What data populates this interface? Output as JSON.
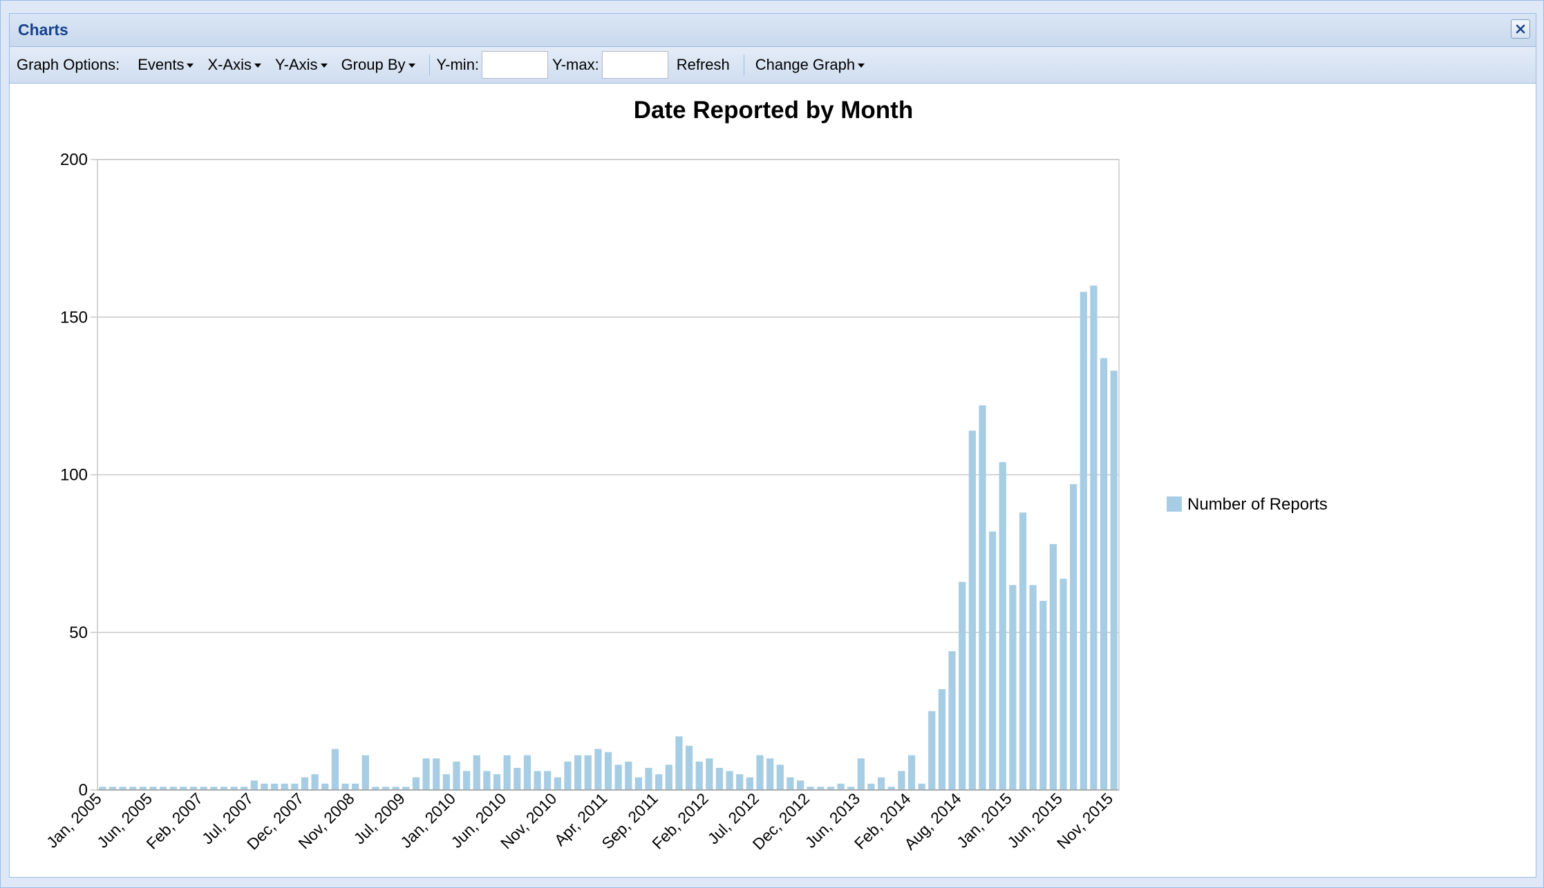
{
  "window": {
    "title": "Charts",
    "close_icon": "close-icon"
  },
  "toolbar": {
    "graph_options_label": "Graph Options:",
    "events_label": "Events",
    "xaxis_label": "X-Axis",
    "yaxis_label": "Y-Axis",
    "groupby_label": "Group By",
    "ymin_label": "Y-min:",
    "ymin_value": "",
    "ymax_label": "Y-max:",
    "ymax_value": "",
    "refresh_label": "Refresh",
    "change_graph_label": "Change Graph"
  },
  "colors": {
    "bar": "#a6cde3",
    "grid": "#c8c8c8",
    "axis": "#a0a0a0"
  },
  "chart_data": {
    "type": "bar",
    "title": "Date Reported by Month",
    "xlabel": "",
    "ylabel": "",
    "ylim": [
      0,
      200
    ],
    "yticks": [
      0,
      50,
      100,
      150,
      200
    ],
    "grid": true,
    "legend_position": "right",
    "tick_labels": [
      "Jan, 2005",
      "Jun, 2005",
      "Feb, 2007",
      "Jul, 2007",
      "Dec, 2007",
      "Nov, 2008",
      "Jul, 2009",
      "Jan, 2010",
      "Jun, 2010",
      "Nov, 2010",
      "Apr, 2011",
      "Sep, 2011",
      "Feb, 2012",
      "Jul, 2012",
      "Dec, 2012",
      "Jun, 2013",
      "Feb, 2014",
      "Aug, 2014",
      "Jan, 2015",
      "Jun, 2015",
      "Nov, 2015"
    ],
    "series": [
      {
        "name": "Number of Reports",
        "values": [
          1,
          1,
          1,
          1,
          1,
          1,
          1,
          1,
          1,
          1,
          1,
          1,
          1,
          1,
          1,
          3,
          2,
          2,
          2,
          2,
          4,
          5,
          2,
          13,
          2,
          2,
          11,
          1,
          1,
          1,
          1,
          4,
          10,
          10,
          5,
          9,
          6,
          11,
          6,
          5,
          11,
          7,
          11,
          6,
          6,
          4,
          9,
          11,
          11,
          13,
          12,
          8,
          9,
          4,
          7,
          5,
          8,
          17,
          14,
          9,
          10,
          7,
          6,
          5,
          4,
          11,
          10,
          8,
          4,
          3,
          1,
          1,
          1,
          2,
          1,
          10,
          2,
          4,
          1,
          6,
          11,
          2,
          25,
          32,
          44,
          66,
          114,
          122,
          82,
          104,
          65,
          88,
          65,
          60,
          78,
          67,
          97,
          158,
          160,
          137,
          133
        ]
      }
    ]
  }
}
